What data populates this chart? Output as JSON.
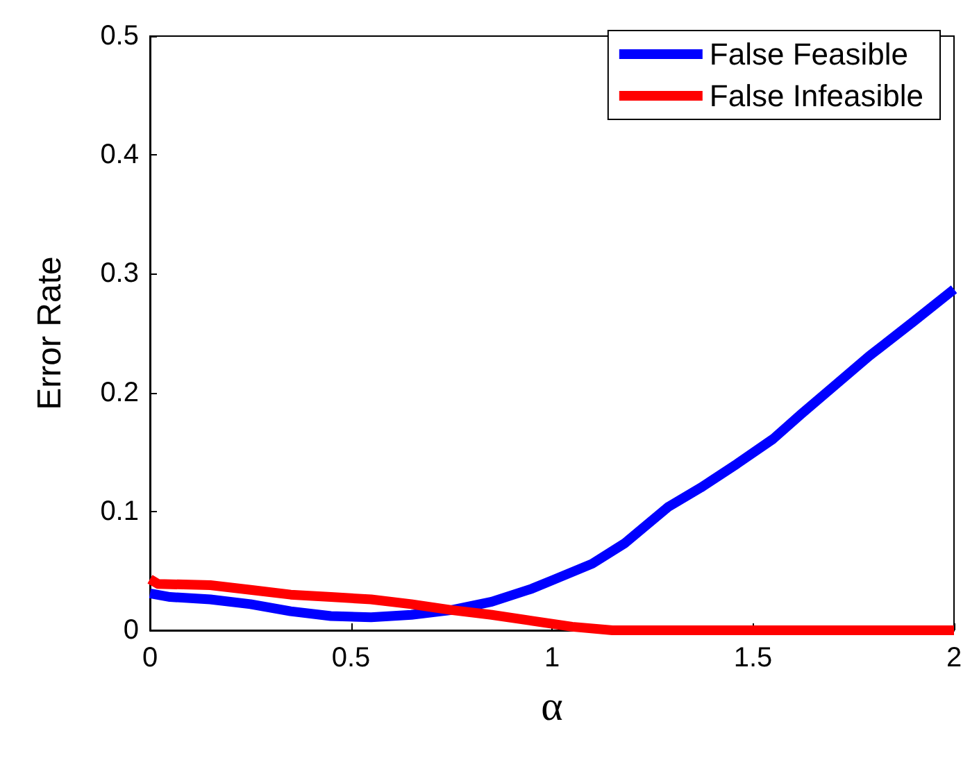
{
  "chart_data": {
    "type": "line",
    "xlabel": "α",
    "ylabel": "Error Rate",
    "xlim": [
      0,
      2
    ],
    "xticks": [
      0,
      0.5,
      1,
      1.5,
      2
    ],
    "ylim": [
      0,
      0.5
    ],
    "yticks": [
      0,
      0.1,
      0.2,
      0.3,
      0.4,
      0.5
    ],
    "grid": false,
    "legend": "top right",
    "marker": "none",
    "line_style": "solid",
    "series": [
      {
        "name": "False Feasible",
        "color": "#0000ff",
        "x": [
          0,
          0.05,
          0.15,
          0.25,
          0.35,
          0.45,
          0.55,
          0.65,
          0.75,
          0.85,
          0.95,
          1.0,
          1.1,
          1.18,
          1.29,
          1.37,
          1.46,
          1.55,
          1.62,
          1.7,
          1.79,
          1.9,
          2.0
        ],
        "values": [
          0.031,
          0.028,
          0.026,
          0.022,
          0.016,
          0.012,
          0.011,
          0.013,
          0.017,
          0.024,
          0.035,
          0.042,
          0.056,
          0.073,
          0.104,
          0.12,
          0.14,
          0.161,
          0.182,
          0.205,
          0.231,
          0.26,
          0.287
        ]
      },
      {
        "name": "False Infeasible",
        "color": "#ff0000",
        "x": [
          0,
          0.02,
          0.15,
          0.25,
          0.35,
          0.45,
          0.55,
          0.65,
          0.75,
          0.85,
          0.95,
          1.05,
          1.15,
          1.3,
          1.5,
          1.75,
          2.0
        ],
        "values": [
          0.043,
          0.039,
          0.038,
          0.034,
          0.03,
          0.028,
          0.026,
          0.022,
          0.017,
          0.013,
          0.008,
          0.003,
          0.0,
          0.0,
          0.0,
          0.0,
          0.0
        ]
      }
    ]
  }
}
